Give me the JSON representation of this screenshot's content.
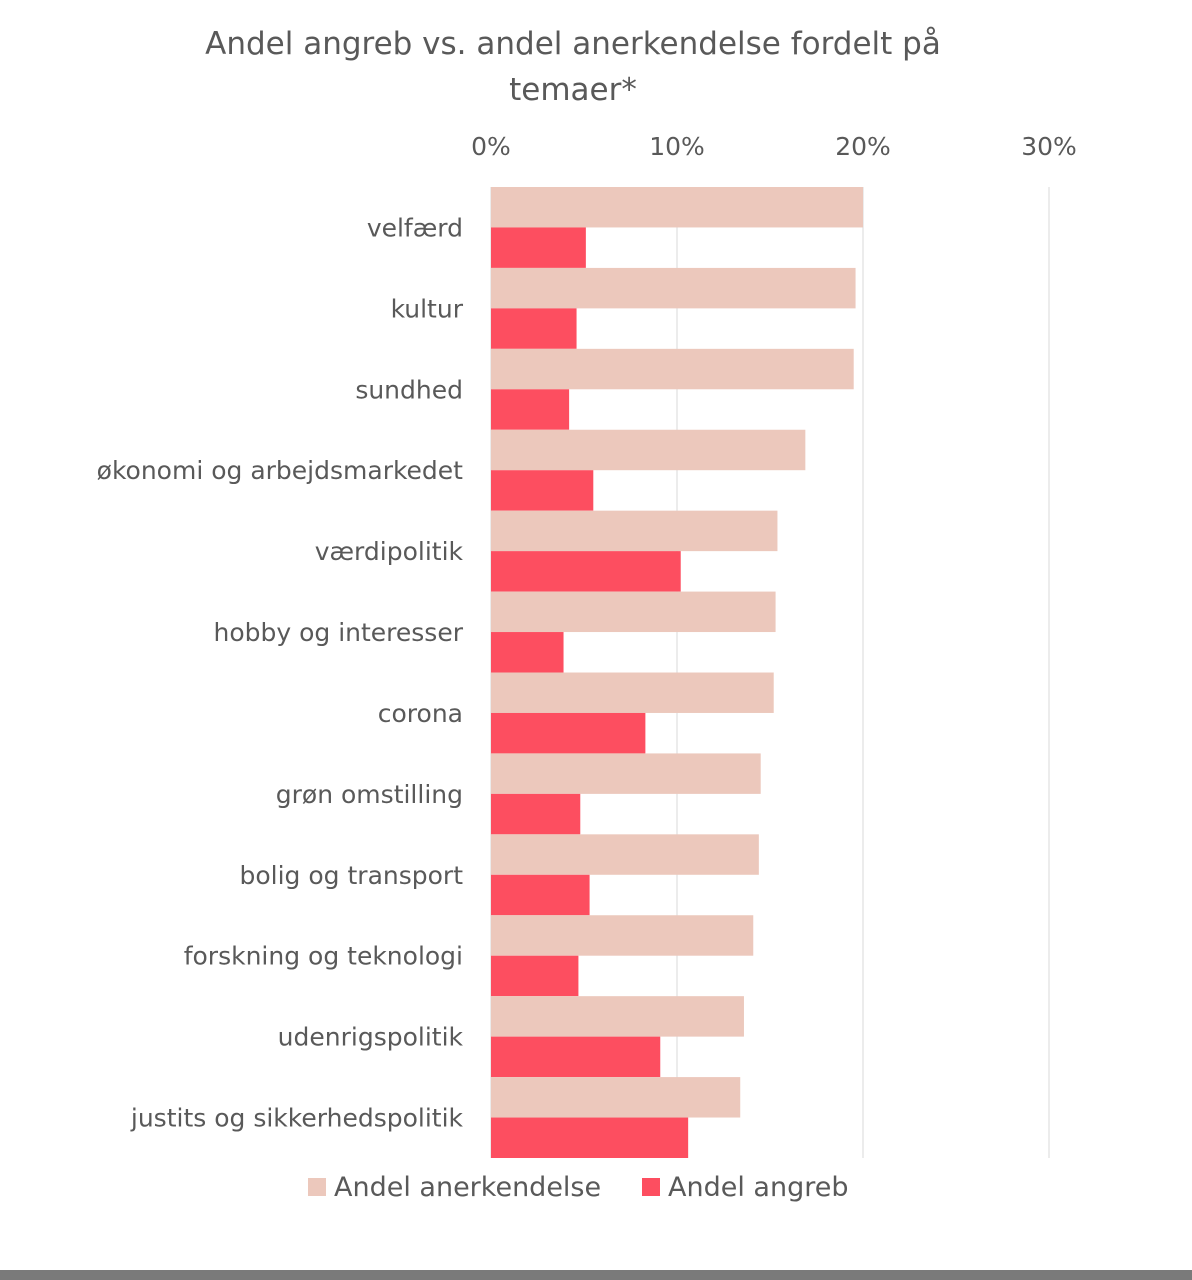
{
  "chart_data": {
    "type": "bar",
    "orientation": "horizontal",
    "title_line1": "Andel angreb vs. andel anerkendelse fordelt på",
    "title_line2": "temaer*",
    "categories": [
      "velfærd",
      "kultur",
      "sundhed",
      "økonomi og arbejdsmarkedet",
      "værdipolitik",
      "hobby og interesser",
      "corona",
      "grøn omstilling",
      "bolig og transport",
      "forskning og teknologi",
      "udenrigspolitik",
      "justits og sikkerhedspolitik"
    ],
    "series": [
      {
        "name": "Andel anerkendelse",
        "color": "#ecc8bc",
        "values": [
          20.0,
          19.6,
          19.5,
          16.9,
          15.4,
          15.3,
          15.2,
          14.5,
          14.4,
          14.1,
          13.6,
          13.4
        ]
      },
      {
        "name": "Andel angreb",
        "color": "#fd4e60",
        "values": [
          5.1,
          4.6,
          4.2,
          5.5,
          10.2,
          3.9,
          8.3,
          4.8,
          5.3,
          4.7,
          9.1,
          10.6
        ]
      }
    ],
    "x_ticks": [
      "0%",
      "10%",
      "20%",
      "30%"
    ],
    "xlim": [
      0,
      30
    ],
    "axis_position": "top",
    "grid": true,
    "legend_position": "bottom"
  }
}
